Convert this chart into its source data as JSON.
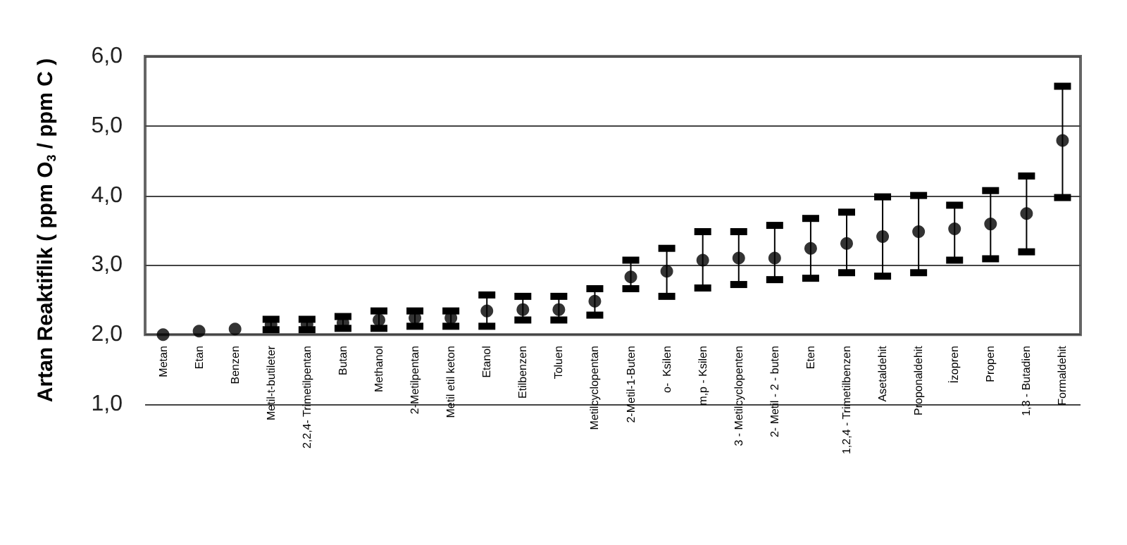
{
  "chart_data": {
    "type": "scatter",
    "ylabel": "Artan Reaktiflik ( ppm O$_{3}$ / ppm C )",
    "categories": [
      "Metan",
      "Etan",
      "Benzen",
      "Metil-t-butileter",
      "2,2,4- Trimetilpentan",
      "Butan",
      "Methanol",
      "2-Metilpentan",
      "Metil etil keton",
      "Etanol",
      "Etilbenzen",
      "Toluen",
      "Metilcyclopentan",
      "2-Metil-1-Buten",
      "o-  Ksilen",
      "m,p - Ksilen",
      "3 - Metilcyclopenten",
      "2- Metil - 2 - buten",
      "Eten",
      "1,2,4 - Trimetilbenzen",
      "Asetaldehit",
      "Proponaldehit",
      "İzopren",
      "Propen",
      "1,3 - Butadien",
      "Formaldehit"
    ],
    "series": [
      {
        "color": "#000000",
        "values": [
          2.0,
          2.05,
          2.08,
          2.14,
          2.15,
          2.17,
          2.21,
          2.24,
          2.24,
          2.34,
          2.36,
          2.36,
          2.48,
          2.83,
          2.91,
          3.07,
          3.1,
          3.1,
          3.24,
          3.31,
          3.41,
          3.48,
          3.52,
          3.59,
          3.74,
          4.79
        ],
        "errors": [
          null,
          null,
          null,
          [
            2.07,
            2.22
          ],
          [
            2.07,
            2.22
          ],
          [
            2.09,
            2.26
          ],
          [
            2.09,
            2.34
          ],
          [
            2.12,
            2.34
          ],
          [
            2.12,
            2.34
          ],
          [
            2.12,
            2.57
          ],
          [
            2.21,
            2.55
          ],
          [
            2.21,
            2.55
          ],
          [
            2.28,
            2.66
          ],
          [
            2.66,
            3.07
          ],
          [
            2.55,
            3.24
          ],
          [
            2.67,
            3.48
          ],
          [
            2.72,
            3.48
          ],
          [
            2.79,
            3.57
          ],
          [
            2.81,
            3.67
          ],
          [
            2.89,
            3.76
          ],
          [
            2.84,
            3.98
          ],
          [
            2.89,
            4.0
          ],
          [
            3.07,
            3.86
          ],
          [
            3.09,
            4.07
          ],
          [
            3.19,
            4.28
          ],
          [
            3.97,
            5.57
          ]
        ]
      }
    ],
    "ylim": [
      1,
      6
    ],
    "yticks": [
      {
        "value": 1,
        "label": "1,0"
      },
      {
        "value": 2,
        "label": "2,0"
      },
      {
        "value": 3,
        "label": "3,0"
      },
      {
        "value": 4,
        "label": "4,0"
      },
      {
        "value": 5,
        "label": "5,0"
      },
      {
        "value": 6,
        "label": "6,0"
      }
    ],
    "grid": "y",
    "marker": "circle"
  }
}
